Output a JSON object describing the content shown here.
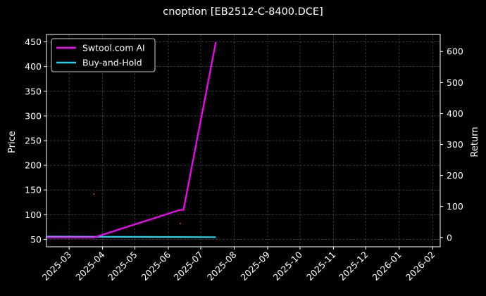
{
  "chart_data": {
    "type": "line",
    "title": "cnoption [EB2512-C-8400.DCE]",
    "ylabel_left": "Price",
    "ylabel_right": "Return",
    "xlabel": "",
    "x_ticks": [
      "2025-03",
      "2025-04",
      "2025-05",
      "2025-06",
      "2025-07",
      "2025-08",
      "2025-09",
      "2025-10",
      "2025-11",
      "2025-12",
      "2026-01",
      "2026-02"
    ],
    "xlim": [
      "2025-02-08",
      "2026-02-08"
    ],
    "ylim_left": [
      35,
      465
    ],
    "yticks_left": [
      50,
      100,
      150,
      200,
      250,
      300,
      350,
      400,
      450
    ],
    "ylim_right": [
      -30,
      655
    ],
    "yticks_right": [
      0,
      100,
      200,
      300,
      400,
      500,
      600
    ],
    "grid": true,
    "legend_position": "top-left",
    "series": [
      {
        "name": "Swtool.com AI",
        "axis": "right",
        "color": "#ff00ff",
        "points": [
          {
            "x": "2025-02-08",
            "y": 0
          },
          {
            "x": "2025-03-24",
            "y": 0
          },
          {
            "x": "2025-06-10",
            "y": 87
          },
          {
            "x": "2025-06-13",
            "y": 89
          },
          {
            "x": "2025-06-15",
            "y": 89
          },
          {
            "x": "2025-07-15",
            "y": 630
          }
        ]
      },
      {
        "name": "Buy-and-Hold",
        "axis": "right",
        "color": "#22d3ee",
        "points": [
          {
            "x": "2025-02-08",
            "y": 3
          },
          {
            "x": "2025-04-15",
            "y": 2
          },
          {
            "x": "2025-07-15",
            "y": 1
          }
        ]
      }
    ],
    "markers": [
      {
        "x": "2025-03-24",
        "y": 142,
        "axis": "left",
        "color": "#ff3333"
      },
      {
        "x": "2025-06-12",
        "y": 82,
        "axis": "left",
        "color": "#ff3333"
      }
    ]
  }
}
